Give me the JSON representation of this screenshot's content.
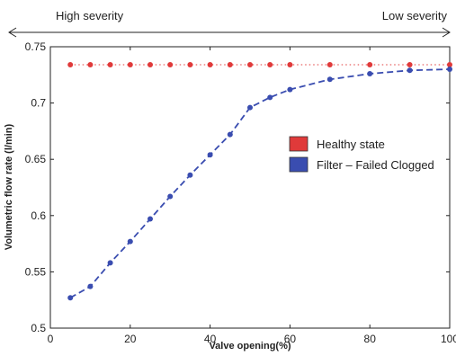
{
  "severity": {
    "high_label": "High severity",
    "low_label": "Low severity"
  },
  "chart_data": {
    "type": "line",
    "xlabel": "Valve opening(%)",
    "ylabel": "Volumetric flow rate (l/min)",
    "xlim": [
      0,
      100
    ],
    "ylim": [
      0.5,
      0.75
    ],
    "x_ticks": [
      "0",
      "20",
      "40",
      "60",
      "80",
      "100"
    ],
    "y_ticks": [
      "0.5",
      "0.55",
      "0.6",
      "0.65",
      "0.7",
      "0.75"
    ],
    "grid": false,
    "legend_position": "right",
    "series": [
      {
        "name": "Healthy state",
        "color": "#e03a3a",
        "line_style": "dotted",
        "x": [
          5,
          10,
          15,
          20,
          25,
          30,
          35,
          40,
          45,
          50,
          55,
          60,
          70,
          80,
          90,
          100
        ],
        "y": [
          0.734,
          0.734,
          0.734,
          0.734,
          0.734,
          0.734,
          0.734,
          0.734,
          0.734,
          0.734,
          0.734,
          0.734,
          0.734,
          0.734,
          0.734,
          0.734
        ]
      },
      {
        "name": "Filter – Failed Clogged",
        "color": "#3a4db0",
        "line_style": "dashed",
        "x": [
          5,
          10,
          15,
          20,
          25,
          30,
          35,
          40,
          45,
          50,
          55,
          60,
          70,
          80,
          90,
          100
        ],
        "y": [
          0.527,
          0.537,
          0.558,
          0.577,
          0.597,
          0.617,
          0.636,
          0.654,
          0.672,
          0.696,
          0.705,
          0.712,
          0.721,
          0.726,
          0.729,
          0.73
        ]
      }
    ]
  }
}
